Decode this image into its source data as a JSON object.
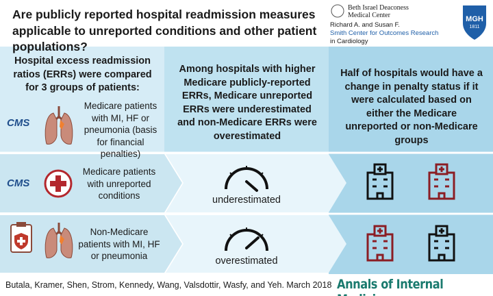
{
  "header": {
    "title": "Are publicly reported hospital readmission measures applicable to unreported conditions and other patient populations?",
    "logos": {
      "bidmc": [
        "Beth Israel Deaconess",
        "Medical Center"
      ],
      "smith": [
        "Richard A. and Susan F.",
        "Smith Center for Outcomes Research",
        "in Cardiology"
      ],
      "mgh": [
        "MGH",
        "1811"
      ]
    }
  },
  "columns": [
    {
      "heading": "Hospital excess readmission ratios (ERRs) were compared for 3 groups of patients:"
    },
    {
      "heading": "Among hospitals with higher Medicare publicly-reported ERRs, Medicare unreported ERRs were underestimated and non-Medicare ERRs were overestimated"
    },
    {
      "heading": "Half of hospitals would have a change in penalty status if it were calculated based on either the Medicare unreported or non-Medicare groups"
    }
  ],
  "groups": [
    {
      "badge": "CMS",
      "label": "Medicare patients with MI, HF or pneumonia (basis for financial penalties)"
    },
    {
      "badge": "CMS",
      "label": "Medicare patients with unreported conditions",
      "gauge": "underestimated"
    },
    {
      "label": "Non-Medicare patients with MI, HF or pneumonia",
      "gauge": "overestimated"
    }
  ],
  "footer": {
    "citation": "Butala, Kramer, Shen, Strom, Kennedy, Wang, Valsdottir, Wasfy, and Yeh. March 2018",
    "journal": "Annals of Internal Medicine"
  }
}
